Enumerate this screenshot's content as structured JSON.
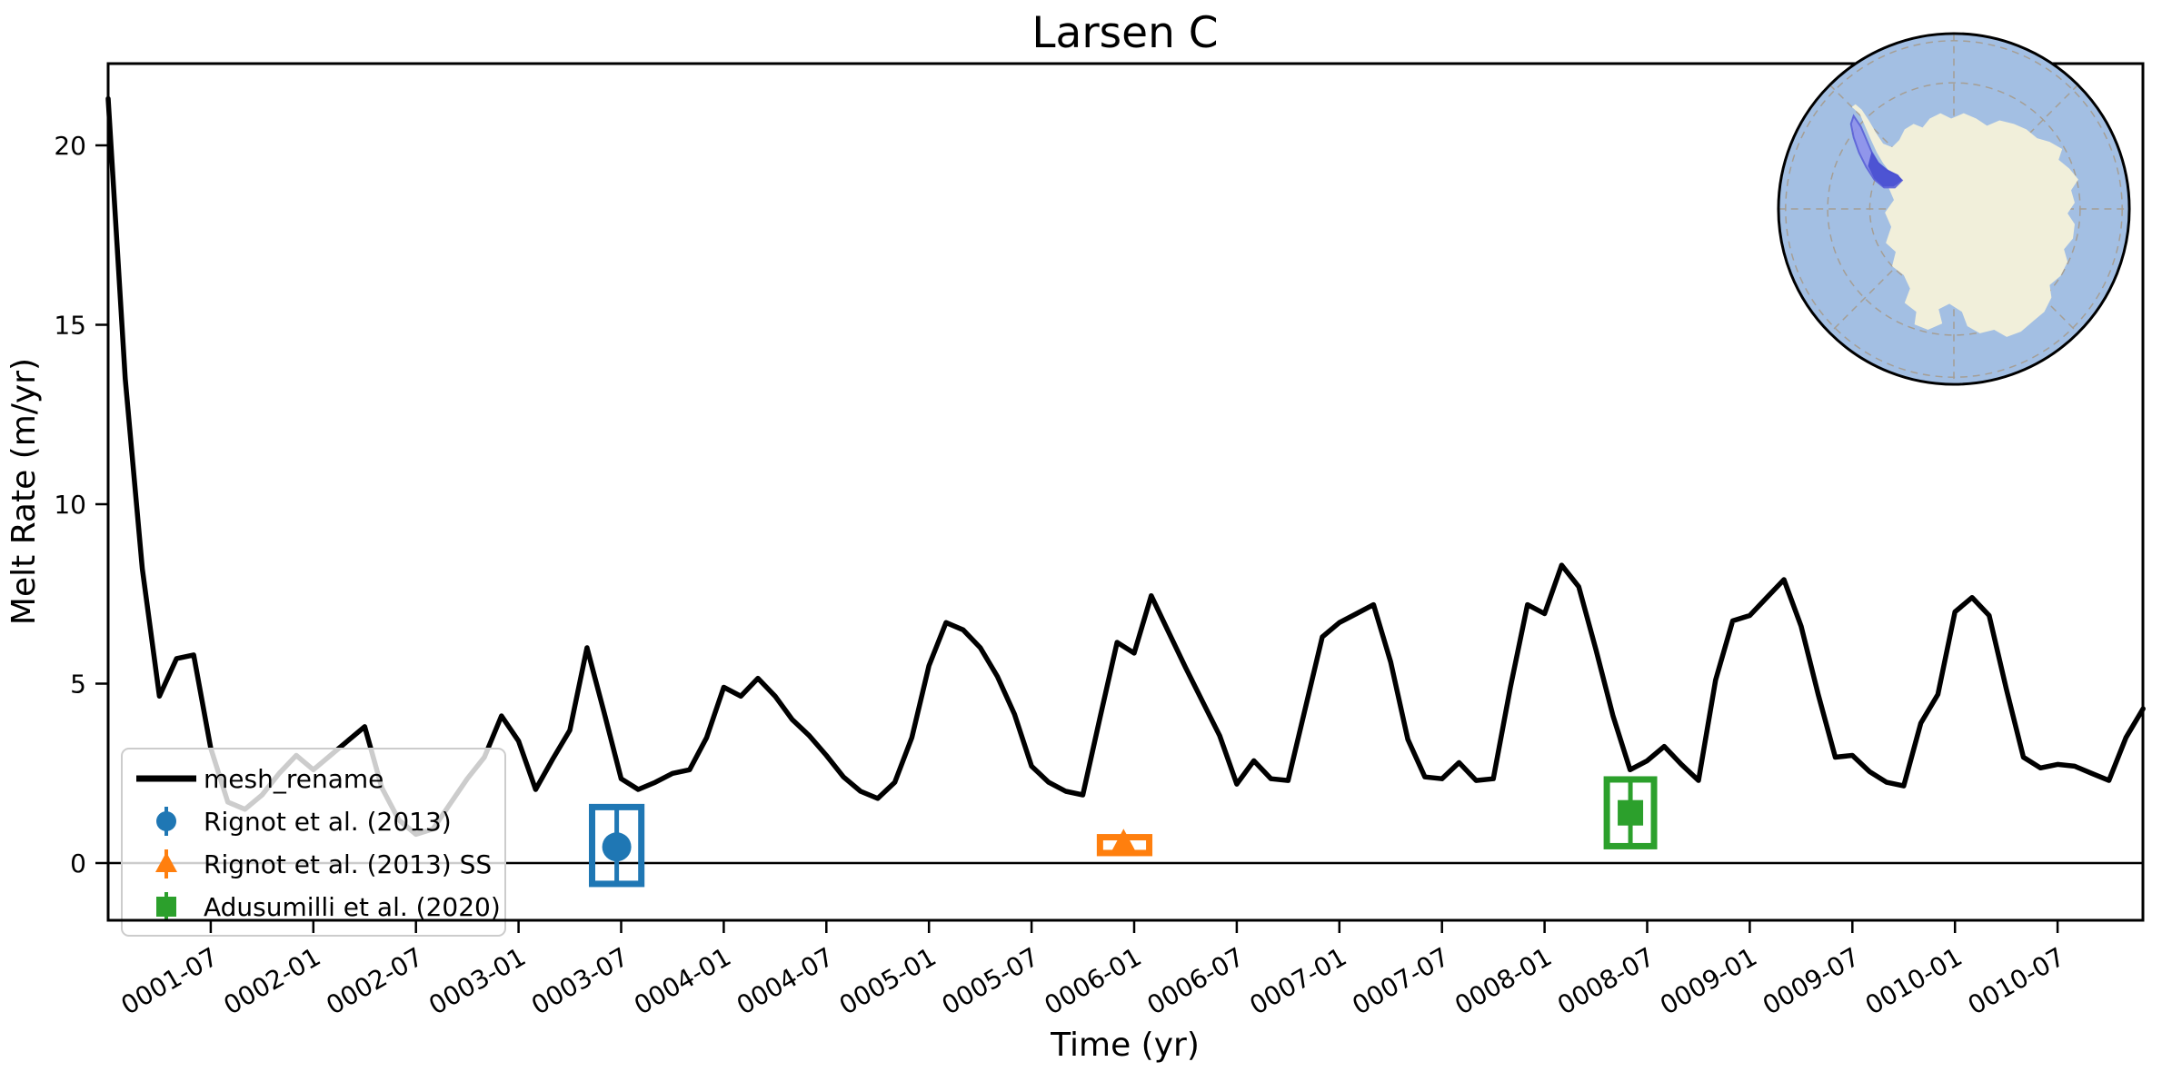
{
  "title": "Larsen C",
  "axes": {
    "xlabel": "Time (yr)",
    "ylabel": "Melt Rate (m/yr)",
    "ytick_labels": [
      "0",
      "5",
      "10",
      "15",
      "20"
    ],
    "xtick_labels": [
      "0001-07",
      "0002-01",
      "0002-07",
      "0003-01",
      "0003-07",
      "0004-01",
      "0004-07",
      "0005-01",
      "0005-07",
      "0006-01",
      "0006-07",
      "0007-01",
      "0007-07",
      "0008-01",
      "0008-07",
      "0009-01",
      "0009-07",
      "0010-01",
      "0010-07"
    ]
  },
  "legend": {
    "items": [
      {
        "label": "mesh_rename",
        "color": "#000000",
        "marker": "line"
      },
      {
        "label": "Rignot et al. (2013)",
        "color": "#1f77b4",
        "marker": "circle"
      },
      {
        "label": "Rignot et al. (2013) SS",
        "color": "#ff7f0e",
        "marker": "triangle"
      },
      {
        "label": "Adusumilli et al. (2020)",
        "color": "#2ca02c",
        "marker": "square"
      }
    ]
  },
  "chart_data": {
    "type": "line",
    "title": "Larsen C",
    "xlabel": "Time (yr)",
    "ylabel": "Melt Rate (m/yr)",
    "x_axis": {
      "start": "0001-01",
      "end": "0010-12",
      "interval_months": 1,
      "tick_labels": [
        "0001-07",
        "0002-01",
        "0002-07",
        "0003-01",
        "0003-07",
        "0004-01",
        "0004-07",
        "0005-01",
        "0005-07",
        "0006-01",
        "0006-07",
        "0007-01",
        "0007-07",
        "0008-01",
        "0008-07",
        "0009-01",
        "0009-07",
        "0010-01",
        "0010-07"
      ]
    },
    "y_axis": {
      "ticks": [
        0,
        5,
        10,
        15,
        20
      ],
      "range": [
        -1.6,
        22.3
      ],
      "zero_line": 0,
      "label": "Melt Rate (m/yr)"
    },
    "legend_position": "lower left",
    "grid": false,
    "series": [
      {
        "name": "mesh_rename",
        "color": "#000000",
        "monthly_values": [
          21.3,
          13.5,
          8.2,
          4.65,
          5.7,
          5.8,
          3.2,
          1.7,
          1.5,
          1.9,
          2.5,
          3.0,
          2.6,
          3.0,
          3.4,
          3.8,
          2.1,
          1.2,
          0.8,
          0.95,
          1.65,
          2.35,
          2.95,
          4.1,
          3.4,
          2.05,
          2.9,
          3.7,
          6.0,
          4.2,
          2.35,
          2.05,
          2.25,
          2.5,
          2.6,
          3.5,
          4.9,
          4.65,
          5.15,
          4.65,
          4.0,
          3.55,
          3.0,
          2.4,
          2.0,
          1.8,
          2.25,
          3.5,
          5.5,
          6.7,
          6.5,
          6.0,
          5.2,
          4.15,
          2.7,
          2.25,
          2.0,
          1.9,
          4.05,
          6.15,
          5.85,
          7.45,
          6.45,
          5.45,
          4.5,
          3.55,
          2.2,
          2.85,
          2.35,
          2.3,
          4.3,
          6.3,
          6.7,
          6.95,
          7.2,
          5.6,
          3.45,
          2.4,
          2.35,
          2.8,
          2.3,
          2.35,
          4.9,
          7.2,
          6.95,
          8.3,
          7.7,
          5.95,
          4.1,
          2.6,
          2.85,
          3.25,
          2.75,
          2.3,
          5.1,
          6.75,
          6.9,
          7.4,
          7.9,
          6.6,
          4.7,
          2.95,
          3.0,
          2.55,
          2.25,
          2.15,
          3.9,
          4.7,
          7.0,
          7.4,
          6.9,
          4.85,
          2.95,
          2.65,
          2.75,
          2.7,
          2.5,
          2.3,
          3.5,
          4.3
        ]
      }
    ],
    "observations": [
      {
        "name": "Rignot et al. (2013)",
        "color": "#1f77b4",
        "marker": "circle",
        "time_years": 2.52,
        "time_range_years": [
          2.4,
          2.64
        ],
        "value": 0.45,
        "value_range": [
          -0.58,
          1.56
        ]
      },
      {
        "name": "Rignot et al. (2013) SS",
        "color": "#ff7f0e",
        "marker": "triangle",
        "time_years": 4.99,
        "time_range_years": [
          4.875,
          5.115
        ],
        "value": 0.5,
        "value_range": [
          0.28,
          0.72
        ]
      },
      {
        "name": "Adusumilli et al. (2020)",
        "color": "#2ca02c",
        "marker": "square",
        "time_years": 7.46,
        "time_range_years": [
          7.345,
          7.575
        ],
        "value": 1.4,
        "value_range": [
          0.47,
          2.33
        ]
      }
    ]
  },
  "inset_map": {
    "name": "antarctica-locator-map",
    "highlighted_region": "Larsen C",
    "ocean_color": "#a3bfe3",
    "land_color": "#f1efda",
    "highlight_color": "#8e92ec",
    "highlight_core_color": "#4a50d2",
    "graticule_color": "#a59e94"
  }
}
